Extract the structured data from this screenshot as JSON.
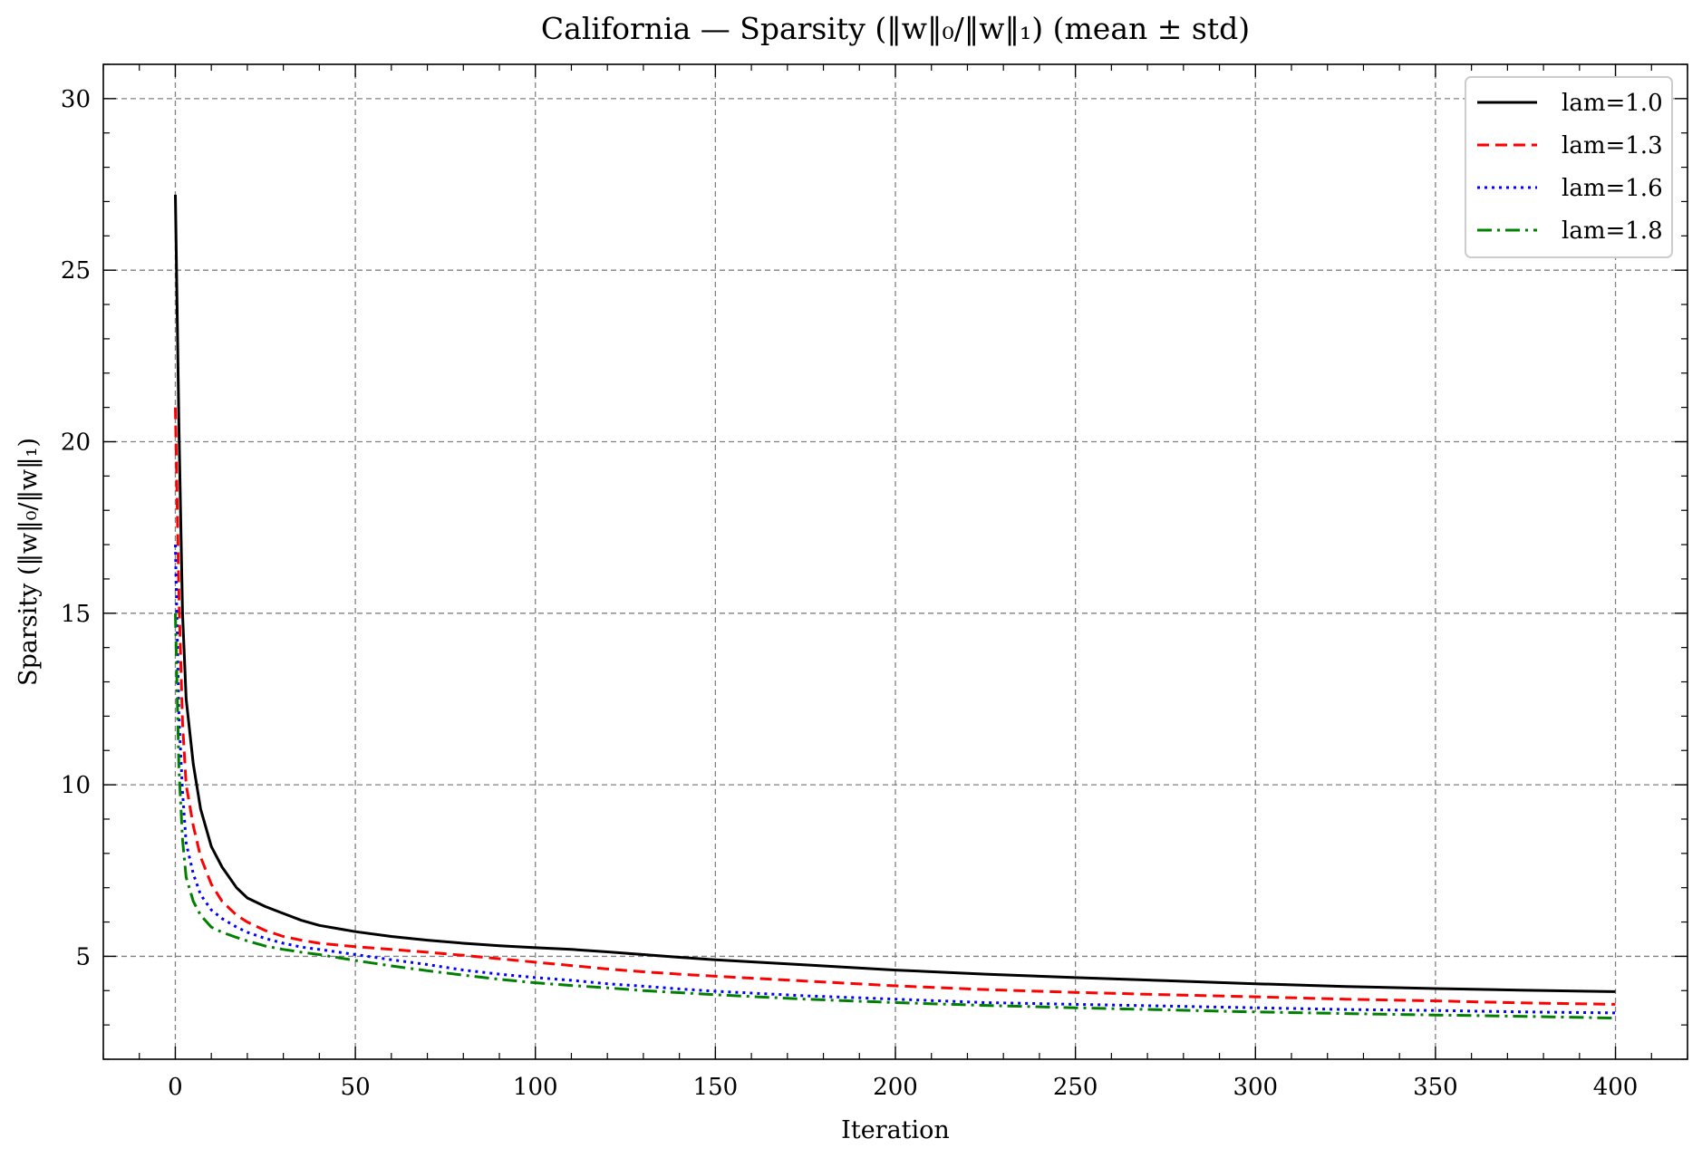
{
  "chart_data": {
    "type": "line",
    "title": "California — Sparsity (‖w‖₀/‖w‖₁) (mean ± std)",
    "xlabel": "Iteration",
    "ylabel": "Sparsity (‖w‖₀/‖w‖₁)",
    "xlim": [
      -20,
      420
    ],
    "ylim": [
      2,
      31
    ],
    "xticks": [
      0,
      50,
      100,
      150,
      200,
      250,
      300,
      350,
      400
    ],
    "yticks": [
      5,
      10,
      15,
      20,
      25,
      30
    ],
    "grid": true,
    "legend_position": "top-right",
    "series": [
      {
        "name": "lam=1.0",
        "color": "#000000",
        "dash": "solid",
        "x": [
          0,
          1,
          2,
          3,
          5,
          7,
          10,
          13,
          17,
          18,
          20,
          25,
          30,
          35,
          40,
          50,
          60,
          70,
          80,
          90,
          100,
          110,
          120,
          130,
          140,
          150,
          175,
          200,
          225,
          250,
          275,
          300,
          325,
          350,
          375,
          400
        ],
        "y": [
          27.2,
          20.5,
          15.0,
          12.5,
          10.6,
          9.3,
          8.2,
          7.6,
          7.0,
          6.9,
          6.7,
          6.45,
          6.25,
          6.05,
          5.9,
          5.72,
          5.58,
          5.47,
          5.38,
          5.31,
          5.25,
          5.2,
          5.13,
          5.05,
          4.97,
          4.9,
          4.75,
          4.6,
          4.48,
          4.38,
          4.29,
          4.2,
          4.12,
          4.06,
          4.01,
          3.97
        ]
      },
      {
        "name": "lam=1.3",
        "color": "#ff0000",
        "dash": "dashed",
        "x": [
          0,
          1,
          2,
          3,
          5,
          7,
          10,
          13,
          17,
          20,
          25,
          30,
          35,
          40,
          50,
          60,
          70,
          80,
          90,
          100,
          110,
          120,
          130,
          140,
          150,
          175,
          200,
          225,
          250,
          275,
          300,
          325,
          350,
          375,
          400
        ],
        "y": [
          21.0,
          15.5,
          11.8,
          10.0,
          8.8,
          7.9,
          7.1,
          6.6,
          6.2,
          6.0,
          5.75,
          5.58,
          5.47,
          5.38,
          5.28,
          5.2,
          5.12,
          5.03,
          4.93,
          4.83,
          4.73,
          4.63,
          4.55,
          4.48,
          4.42,
          4.28,
          4.14,
          4.03,
          3.95,
          3.88,
          3.82,
          3.75,
          3.7,
          3.64,
          3.6
        ]
      },
      {
        "name": "lam=1.6",
        "color": "#0000ff",
        "dash": "dotted",
        "x": [
          0,
          1,
          2,
          3,
          5,
          7,
          10,
          13,
          17,
          20,
          25,
          30,
          35,
          40,
          50,
          60,
          70,
          80,
          90,
          100,
          110,
          120,
          130,
          140,
          150,
          175,
          200,
          225,
          250,
          275,
          300,
          325,
          350,
          375,
          400
        ],
        "y": [
          17.0,
          12.0,
          9.8,
          8.3,
          7.4,
          6.8,
          6.35,
          6.1,
          5.85,
          5.7,
          5.52,
          5.38,
          5.27,
          5.2,
          5.05,
          4.9,
          4.76,
          4.6,
          4.48,
          4.38,
          4.3,
          4.2,
          4.13,
          4.05,
          3.98,
          3.85,
          3.75,
          3.65,
          3.6,
          3.55,
          3.5,
          3.45,
          3.42,
          3.38,
          3.35
        ]
      },
      {
        "name": "lam=1.8",
        "color": "#008000",
        "dash": "dashdot",
        "x": [
          0,
          1,
          2,
          3,
          5,
          7,
          10,
          13,
          17,
          20,
          25,
          30,
          35,
          40,
          50,
          60,
          70,
          80,
          90,
          100,
          110,
          120,
          130,
          140,
          150,
          175,
          200,
          225,
          250,
          275,
          300,
          325,
          350,
          375,
          400
        ],
        "y": [
          15.0,
          10.5,
          8.4,
          7.3,
          6.6,
          6.2,
          5.85,
          5.7,
          5.55,
          5.45,
          5.3,
          5.2,
          5.12,
          5.05,
          4.88,
          4.72,
          4.58,
          4.45,
          4.33,
          4.23,
          4.15,
          4.08,
          4.0,
          3.94,
          3.88,
          3.75,
          3.65,
          3.57,
          3.5,
          3.44,
          3.38,
          3.33,
          3.29,
          3.25,
          3.2
        ]
      }
    ]
  }
}
